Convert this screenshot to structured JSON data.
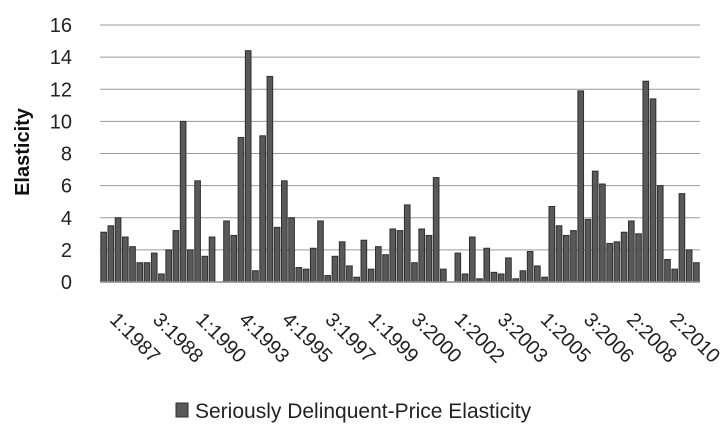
{
  "chart_data": {
    "type": "bar",
    "title": "",
    "xlabel": "",
    "ylabel": "Elasticity",
    "ylim": [
      0,
      16
    ],
    "yticks": [
      0,
      2,
      4,
      6,
      8,
      10,
      12,
      14,
      16
    ],
    "xtick_labels": [
      "1:1987",
      "3:1988",
      "1:1990",
      "4:1993",
      "4:1995",
      "3:1997",
      "1:1999",
      "3:2000",
      "1:2002",
      "3:2003",
      "1:2005",
      "3:2006",
      "2:2008",
      "2:2010"
    ],
    "legend_position": "bottom",
    "grid": "horizontal",
    "bar_color": "#595959",
    "series": [
      {
        "name": "Seriously Delinquent-Price Elasticity",
        "values": [
          3.1,
          3.5,
          4.0,
          2.8,
          2.2,
          1.2,
          1.2,
          1.8,
          0.5,
          2.0,
          3.2,
          10.0,
          2.0,
          6.3,
          1.6,
          2.8,
          0.0,
          3.8,
          2.9,
          9.0,
          14.4,
          0.7,
          9.1,
          12.8,
          3.4,
          6.3,
          4.0,
          0.9,
          0.8,
          2.1,
          3.8,
          0.4,
          1.6,
          2.5,
          1.0,
          0.3,
          2.6,
          0.8,
          2.2,
          1.7,
          3.3,
          3.2,
          4.8,
          1.2,
          3.3,
          2.9,
          6.5,
          0.8,
          0.0,
          1.8,
          0.5,
          2.8,
          0.2,
          2.1,
          0.6,
          0.5,
          1.5,
          0.2,
          0.7,
          1.9,
          1.0,
          0.3,
          4.7,
          3.5,
          2.9,
          3.2,
          11.9,
          3.9,
          6.9,
          6.1,
          2.4,
          2.5,
          3.1,
          3.8,
          3.0,
          12.5,
          11.4,
          6.0,
          1.4,
          0.8,
          5.5,
          2.0,
          1.2
        ]
      }
    ]
  }
}
